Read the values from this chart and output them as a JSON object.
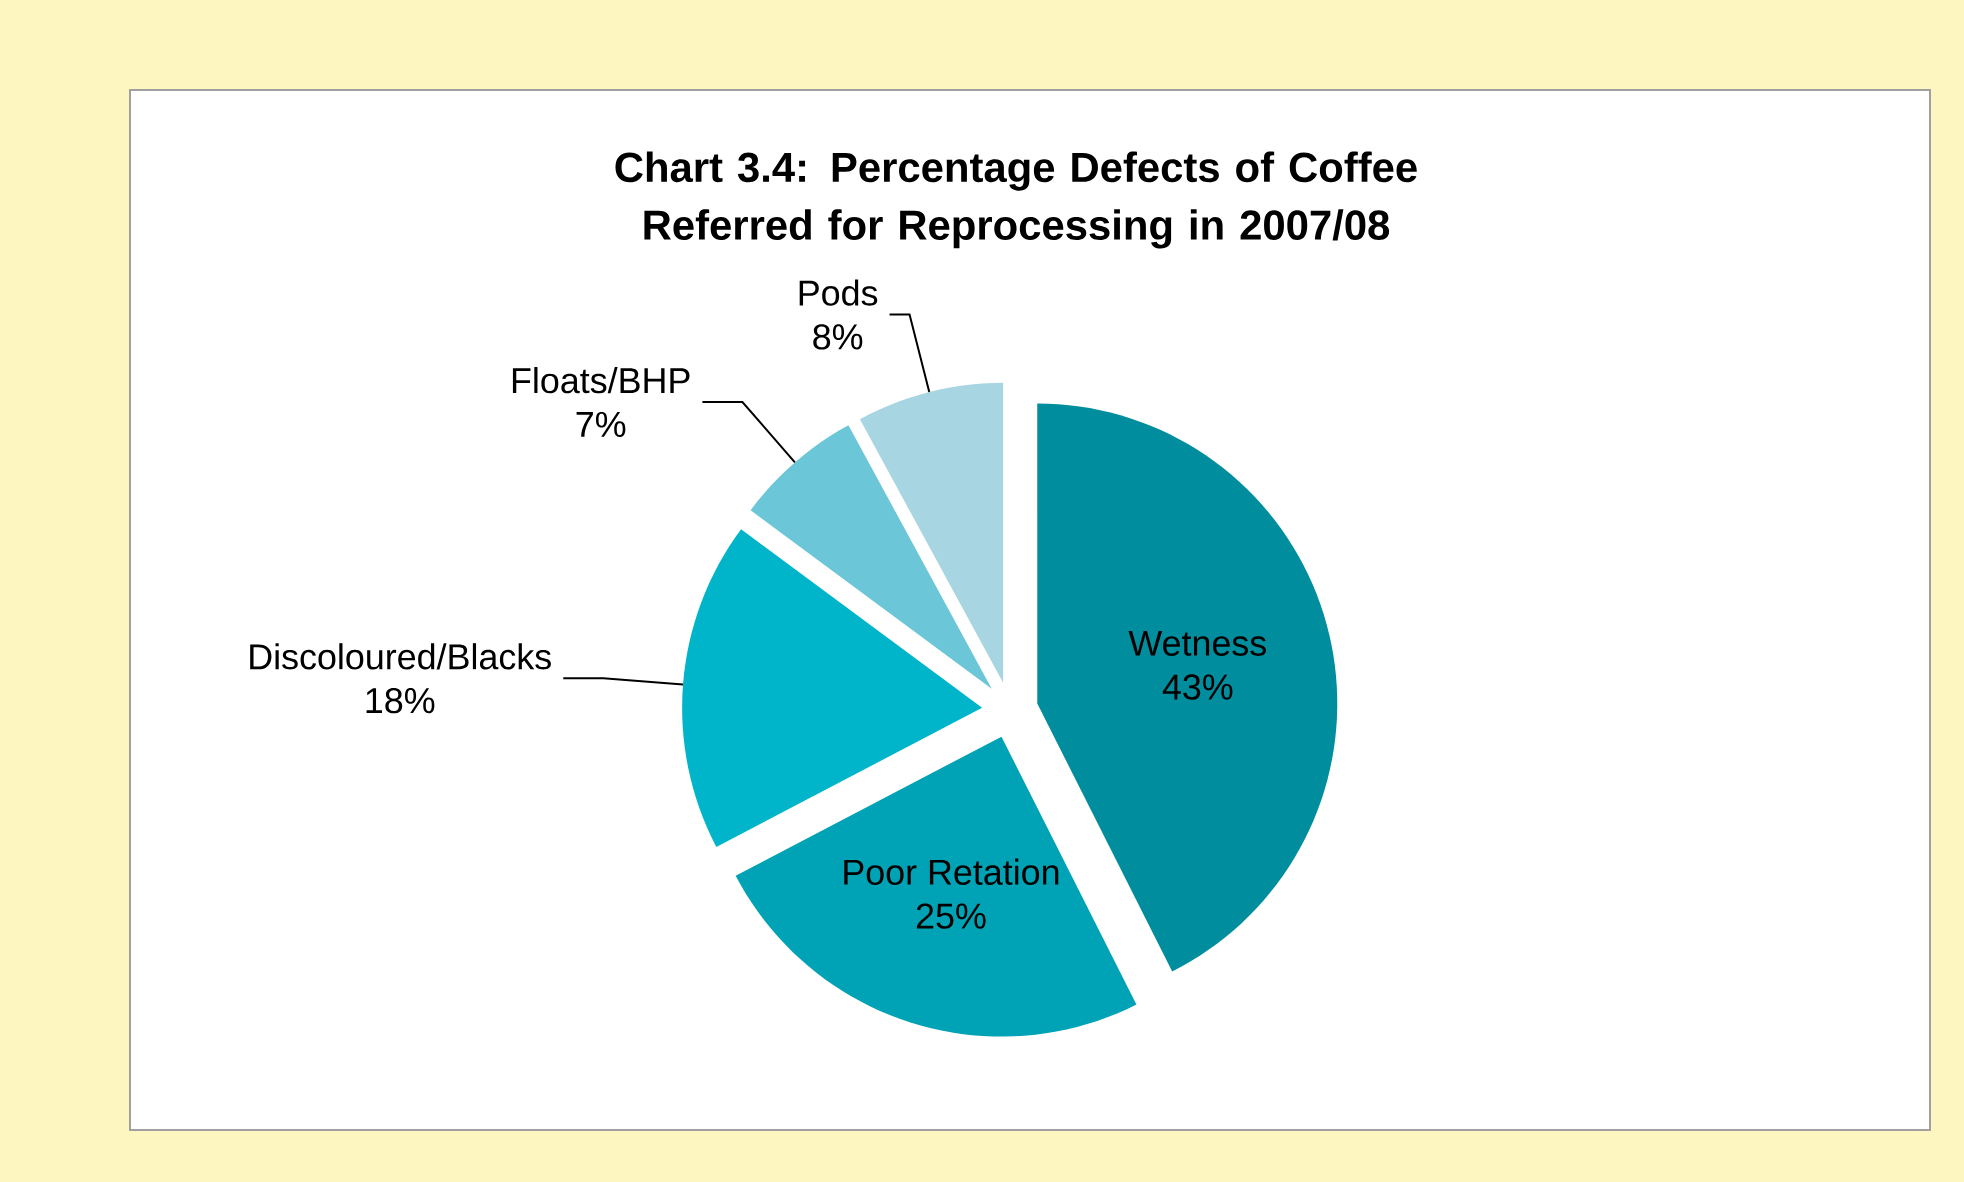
{
  "chart_data": {
    "type": "pie",
    "title": "Chart 3.4: Percentage Defects of Coffee Referred for Reprocessing in 2007/08",
    "categories": [
      "Wetness",
      "Poor Retation",
      "Discoloured/Blacks",
      "Floats/BHP",
      "Pods"
    ],
    "values": [
      43,
      25,
      18,
      7,
      8
    ],
    "value_labels": [
      "43%",
      "25%",
      "18%",
      "7%",
      "8%"
    ],
    "colors": [
      "#008e9e",
      "#00a3b5",
      "#00b5c9",
      "#6bc6d7",
      "#a8d5e2"
    ]
  }
}
